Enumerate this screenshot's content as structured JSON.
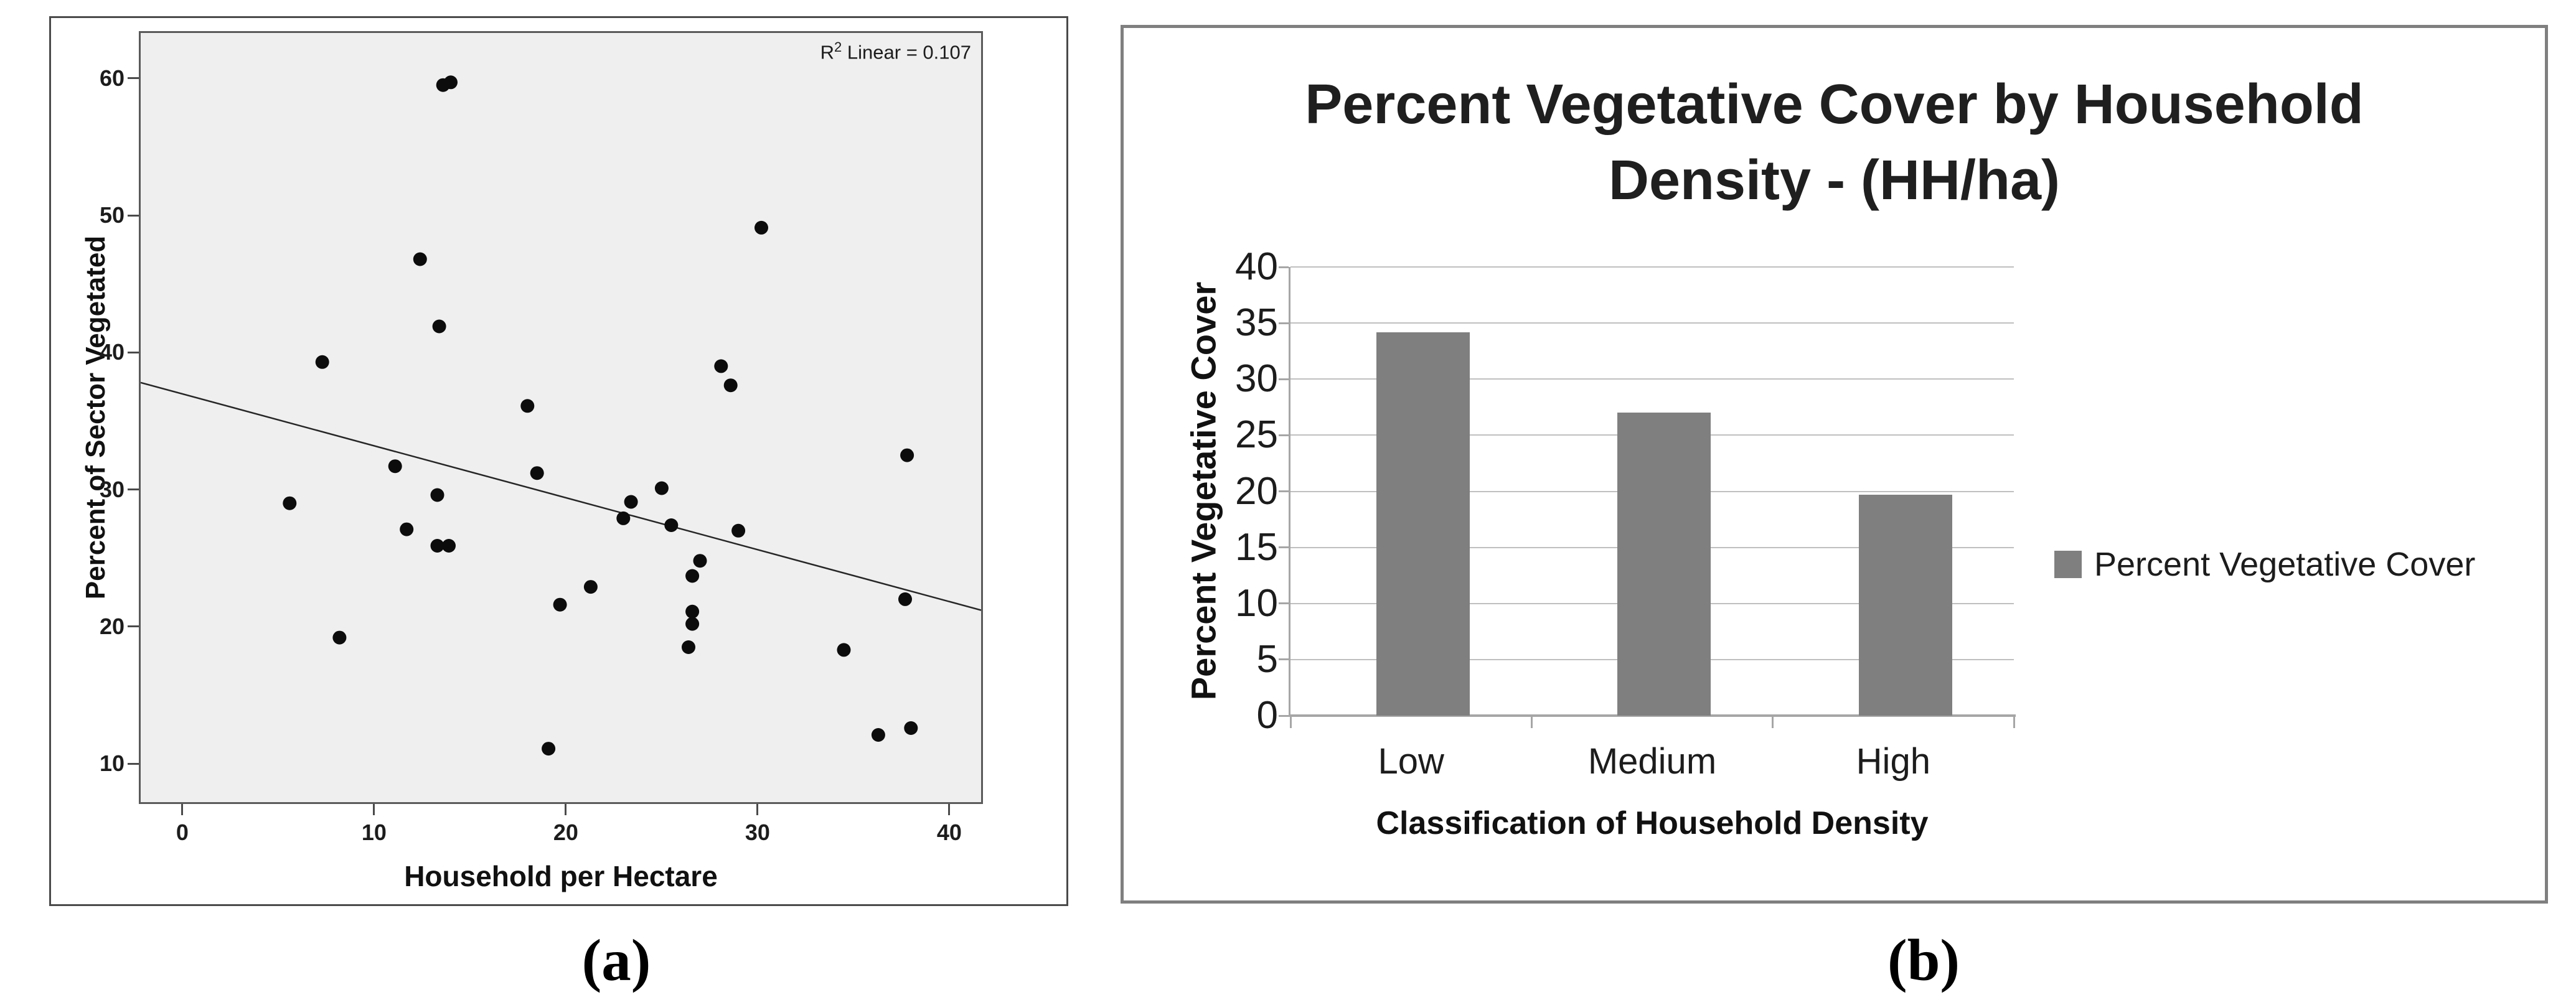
{
  "figure": {
    "caption_a": "(a)",
    "caption_b": "(b)"
  },
  "chart_data": [
    {
      "type": "scatter",
      "xlabel": "Household per Hectare",
      "ylabel": "Percent of Sector Vegetated",
      "annotation": "R2 Linear = 0.107",
      "annotation_base": "R",
      "annotation_sup": "2",
      "annotation_rest": " Linear = 0.107",
      "xlim": [
        -2.17,
        41.66
      ],
      "ylim": [
        7.2,
        63.3
      ],
      "x_ticks": [
        0,
        10,
        20,
        30,
        40
      ],
      "y_ticks": [
        10,
        20,
        30,
        40,
        50,
        60
      ],
      "grid": false,
      "plot_bg": "#efefef",
      "dot_color": "#0c0c0c",
      "line_color": "#262626",
      "points": [
        [
          13.6,
          59.5
        ],
        [
          12.4,
          46.8
        ],
        [
          30.2,
          49.1
        ],
        [
          13.4,
          41.9
        ],
        [
          7.3,
          39.3
        ],
        [
          28.1,
          39.0
        ],
        [
          28.6,
          37.6
        ],
        [
          18.0,
          36.1
        ],
        [
          37.8,
          32.5
        ],
        [
          11.1,
          31.7
        ],
        [
          18.5,
          31.2
        ],
        [
          25.0,
          30.1
        ],
        [
          13.3,
          29.6
        ],
        [
          14.0,
          59.7
        ],
        [
          5.6,
          29.0
        ],
        [
          23.4,
          29.1
        ],
        [
          23.0,
          27.9
        ],
        [
          25.5,
          27.4
        ],
        [
          29.0,
          27.0
        ],
        [
          11.7,
          27.1
        ],
        [
          13.3,
          25.9
        ],
        [
          13.9,
          25.9
        ],
        [
          27.0,
          24.8
        ],
        [
          26.6,
          23.7
        ],
        [
          21.3,
          22.9
        ],
        [
          37.7,
          22.0
        ],
        [
          26.6,
          21.1
        ],
        [
          19.7,
          21.6
        ],
        [
          26.6,
          20.2
        ],
        [
          8.2,
          19.2
        ],
        [
          26.4,
          18.5
        ],
        [
          34.5,
          18.3
        ],
        [
          36.3,
          12.1
        ],
        [
          38.0,
          12.6
        ],
        [
          19.1,
          11.1
        ]
      ],
      "trendline": {
        "x1": -2.17,
        "y1": 37.8,
        "x2": 41.66,
        "y2": 21.2
      }
    },
    {
      "type": "bar",
      "title": "Percent Vegetative Cover by Household Density - (HH/ha)",
      "title_line1": "Percent Vegetative Cover by Household",
      "title_line2": "Density - (HH/ha)",
      "categories": [
        "Low",
        "Medium",
        "High"
      ],
      "values": [
        34.2,
        27.0,
        19.7
      ],
      "xlabel": "Classification of Household Density",
      "ylabel": "Percent Vegetative Cover",
      "legend": "Percent Vegetative Cover",
      "legend_position": "right",
      "ylim": [
        0,
        40
      ],
      "y_ticks": [
        0,
        5,
        10,
        15,
        20,
        25,
        30,
        35,
        40
      ],
      "grid": true,
      "bar_color": "#7f7f7f",
      "grid_color": "#bfbfbf",
      "axis_color": "#a6a6a6"
    }
  ]
}
